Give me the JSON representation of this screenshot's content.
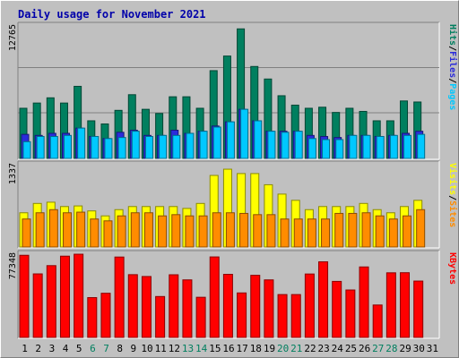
{
  "chart_data": {
    "type": "bar",
    "title": "Daily usage for November 2021",
    "categories": [
      "1",
      "2",
      "3",
      "4",
      "5",
      "6",
      "7",
      "8",
      "9",
      "10",
      "11",
      "12",
      "13",
      "14",
      "15",
      "16",
      "17",
      "18",
      "19",
      "20",
      "21",
      "22",
      "23",
      "24",
      "25",
      "26",
      "27",
      "28",
      "29",
      "30",
      "31"
    ],
    "weekend_days": [
      "6",
      "7",
      "13",
      "14",
      "20",
      "21",
      "27",
      "28"
    ],
    "panels": [
      {
        "id": "hits-files-pages",
        "max_label": "12765",
        "ymax": 12765,
        "series": [
          {
            "name": "Hits",
            "color": "#007f5f",
            "values": [
              4800,
              5300,
              5800,
              5300,
              6900,
              3600,
              3300,
              4600,
              6100,
              4700,
              4300,
              5900,
              5900,
              4800,
              8400,
              9800,
              12400,
              8800,
              7600,
              6000,
              5100,
              4800,
              4900,
              4400,
              4800,
              4500,
              3600,
              3600,
              5500,
              5400,
              null
            ]
          },
          {
            "name": "Files",
            "color": "#2b2bdb",
            "values": [
              2300,
              2200,
              2400,
              2400,
              2900,
              2100,
              1900,
              2500,
              2700,
              2200,
              2200,
              2700,
              2400,
              2600,
              3100,
              3500,
              4700,
              3600,
              2600,
              2600,
              2600,
              2200,
              2100,
              2000,
              2200,
              2200,
              2100,
              2200,
              2400,
              2600,
              null
            ]
          },
          {
            "name": "Pages",
            "color": "#00c8ff",
            "values": [
              1600,
              2100,
              2100,
              2200,
              2900,
              2100,
              1900,
              2000,
              2600,
              2100,
              2200,
              2200,
              2400,
              2600,
              3000,
              3500,
              4700,
              3600,
              2600,
              2500,
              2600,
              1900,
              1800,
              1800,
              2200,
              2200,
              2100,
              2200,
              2200,
              2300,
              null
            ]
          }
        ],
        "legend": [
          "Pages",
          "/",
          "Files",
          "/",
          "Hits"
        ]
      },
      {
        "id": "visits-sites",
        "max_label": "1337",
        "ymax": 1337,
        "series": [
          {
            "name": "Visits",
            "color": "#ffff00",
            "values": [
              550,
              700,
              720,
              650,
              660,
              580,
              500,
              600,
              650,
              650,
              650,
              650,
              620,
              700,
              1150,
              1250,
              1180,
              1180,
              1000,
              850,
              750,
              600,
              650,
              650,
              650,
              700,
              600,
              550,
              650,
              750,
              null
            ]
          },
          {
            "name": "Sites",
            "color": "#ff8c00",
            "values": [
              450,
              550,
              600,
              550,
              560,
              450,
              420,
              500,
              550,
              550,
              500,
              520,
              500,
              500,
              550,
              550,
              540,
              520,
              520,
              450,
              450,
              450,
              450,
              540,
              540,
              550,
              500,
              450,
              500,
              600,
              null
            ]
          }
        ],
        "legend": [
          "Sites",
          "/",
          "Visits"
        ]
      },
      {
        "id": "kbytes",
        "max_label": "77348",
        "ymax": 77348,
        "series": [
          {
            "name": "KBytes",
            "color": "#ff0000",
            "values": [
              75500,
              58400,
              66000,
              74700,
              76500,
              36600,
              40600,
              73900,
              57700,
              56000,
              37600,
              57600,
              52900,
              36900,
              74000,
              58000,
              40900,
              57100,
              52900,
              39400,
              39400,
              58300,
              69500,
              51500,
              43600,
              64800,
              29800,
              59400,
              59500,
              51800,
              null
            ]
          }
        ],
        "legend": [
          "KBytes"
        ]
      }
    ]
  }
}
